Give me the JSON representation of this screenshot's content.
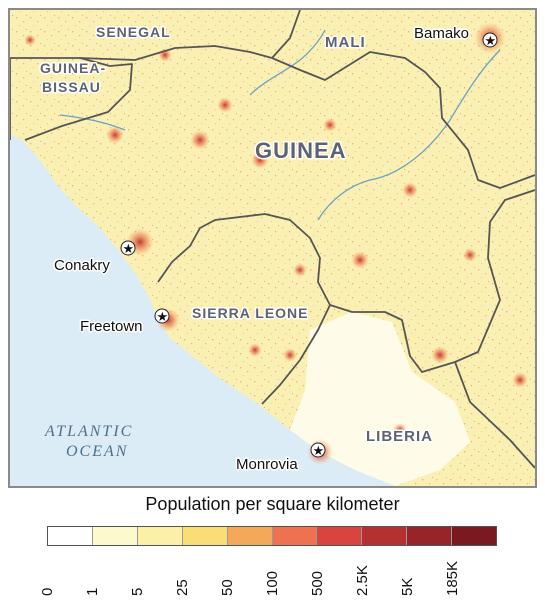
{
  "map": {
    "countries": [
      {
        "id": "senegal",
        "label": "SENEGAL"
      },
      {
        "id": "mali",
        "label": "MALI"
      },
      {
        "id": "guinea-bissau",
        "label_line1": "GUINEA-",
        "label_line2": "BISSAU"
      },
      {
        "id": "guinea",
        "label": "GUINEA"
      },
      {
        "id": "sierra-leone",
        "label": "SIERRA LEONE"
      },
      {
        "id": "liberia",
        "label": "LIBERIA"
      }
    ],
    "cities": [
      {
        "id": "bamako",
        "label": "Bamako",
        "marker": "star-icon"
      },
      {
        "id": "conakry",
        "label": "Conakry",
        "marker": "star-icon"
      },
      {
        "id": "freetown",
        "label": "Freetown",
        "marker": "star-icon"
      },
      {
        "id": "monrovia",
        "label": "Monrovia",
        "marker": "star-icon"
      }
    ],
    "ocean": {
      "line1": "ATLANTIC",
      "line2": "OCEAN"
    },
    "colors": {
      "ocean": "#dcecf6",
      "land": "#fbf0b4",
      "borders": "#555555",
      "rivers": "#6aa2c4"
    }
  },
  "legend": {
    "title": "Population per square kilometer",
    "bins": [
      {
        "color": "#ffffff"
      },
      {
        "color": "#fdf9cf"
      },
      {
        "color": "#fcf0a8"
      },
      {
        "color": "#f9de78"
      },
      {
        "color": "#f4a85a"
      },
      {
        "color": "#ee7250"
      },
      {
        "color": "#d9443f"
      },
      {
        "color": "#b53031"
      },
      {
        "color": "#962428"
      },
      {
        "color": "#7a1a1f"
      }
    ],
    "ticks": [
      "0",
      "1",
      "5",
      "25",
      "50",
      "100",
      "500",
      "2.5K",
      "5K",
      "185K"
    ]
  }
}
